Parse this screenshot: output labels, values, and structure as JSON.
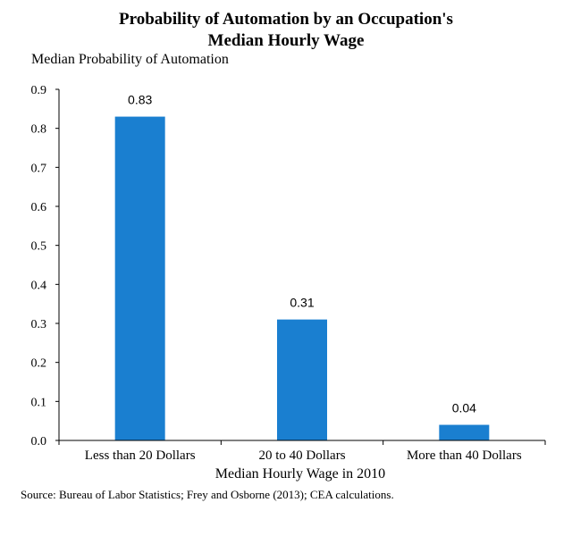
{
  "chart_data": {
    "type": "bar",
    "title_line1": "Probability of Automation by an Occupation's",
    "title_line2": "Median Hourly Wage",
    "ylabel": "Median Probability of Automation",
    "xlabel": "Median Hourly Wage in 2010",
    "categories": [
      "Less than 20 Dollars",
      "20 to 40 Dollars",
      "More than 40 Dollars"
    ],
    "values": [
      0.83,
      0.31,
      0.04
    ],
    "data_labels": [
      "0.83",
      "0.31",
      "0.04"
    ],
    "ylim": [
      0,
      0.9
    ],
    "yticks": [
      "0.0",
      "0.1",
      "0.2",
      "0.3",
      "0.4",
      "0.5",
      "0.6",
      "0.7",
      "0.8",
      "0.9"
    ],
    "grid": false,
    "bar_color": "#1a7fd0"
  },
  "source": "Source: Bureau of Labor Statistics;  Frey and Osborne (2013); CEA calculations."
}
